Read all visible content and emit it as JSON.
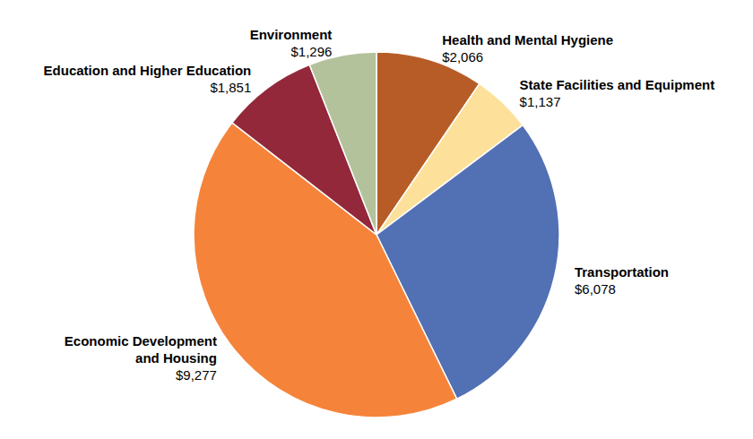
{
  "chart_data": {
    "type": "pie",
    "categories": [
      "Health and Mental Hygiene",
      "State Facilities and Equipment",
      "Transportation",
      "Economic Development and Housing",
      "Education and Higher Education",
      "Environment"
    ],
    "values": [
      2066,
      1137,
      6078,
      9277,
      1851,
      1296
    ],
    "value_labels": [
      "$2,066",
      "$1,137",
      "$6,078",
      "$9,277",
      "$1,851",
      "$1,296"
    ],
    "colors": [
      "#b85c27",
      "#fde19a",
      "#5270b4",
      "#f5843a",
      "#93283b",
      "#b3c29b"
    ],
    "data_labels": true
  }
}
